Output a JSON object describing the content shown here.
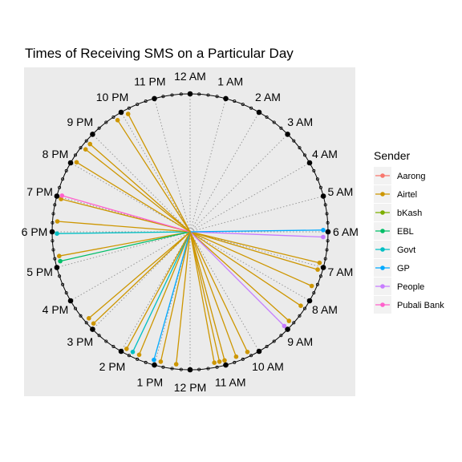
{
  "chart_data": {
    "type": "radial-clock",
    "title": "Times of Receiving SMS on a Particular Day",
    "hour_labels": [
      "12 AM",
      "1 AM",
      "2 AM",
      "3 AM",
      "4 AM",
      "5 AM",
      "6 AM",
      "7 AM",
      "8 AM",
      "9 AM",
      "10 AM",
      "11 AM",
      "12 PM",
      "1 PM",
      "2 PM",
      "3 PM",
      "4 PM",
      "5 PM",
      "6 PM",
      "7 PM",
      "8 PM",
      "9 PM",
      "10 PM",
      "11 PM"
    ],
    "legend": {
      "title": "Sender",
      "position": "right",
      "items": [
        {
          "name": "Aarong",
          "color": "#F8766D"
        },
        {
          "name": "Airtel",
          "color": "#CD9600"
        },
        {
          "name": "bKash",
          "color": "#7CAE00"
        },
        {
          "name": "EBL",
          "color": "#00BE67"
        },
        {
          "name": "Govt",
          "color": "#00BFC4"
        },
        {
          "name": "GP",
          "color": "#00A9FF"
        },
        {
          "name": "People",
          "color": "#C77CFF"
        },
        {
          "name": "Pubali Bank",
          "color": "#FF61CC"
        }
      ]
    },
    "messages": [
      {
        "sender": "Airtel",
        "time": 6.9
      },
      {
        "sender": "Airtel",
        "time": 7.1
      },
      {
        "sender": "Airtel",
        "time": 7.6
      },
      {
        "sender": "Airtel",
        "time": 8.25
      },
      {
        "sender": "Airtel",
        "time": 8.8
      },
      {
        "sender": "People",
        "time": 9.0
      },
      {
        "sender": "People",
        "time": 6.15
      },
      {
        "sender": "GP",
        "time": 5.95
      },
      {
        "sender": "Airtel",
        "time": 10.3
      },
      {
        "sender": "Airtel",
        "time": 10.65
      },
      {
        "sender": "Airtel",
        "time": 11.0
      },
      {
        "sender": "Airtel",
        "time": 11.15
      },
      {
        "sender": "Airtel",
        "time": 11.3
      },
      {
        "sender": "Airtel",
        "time": 12.4
      },
      {
        "sender": "Airtel",
        "time": 12.85
      },
      {
        "sender": "GP",
        "time": 13.05
      },
      {
        "sender": "Airtel",
        "time": 13.5
      },
      {
        "sender": "Govt",
        "time": 13.7
      },
      {
        "sender": "Airtel",
        "time": 13.9
      },
      {
        "sender": "Airtel",
        "time": 15.1
      },
      {
        "sender": "Airtel",
        "time": 15.3
      },
      {
        "sender": "Airtel",
        "time": 17.3
      },
      {
        "sender": "EBL",
        "time": 17.15
      },
      {
        "sender": "Govt",
        "time": 17.95
      },
      {
        "sender": "Airtel",
        "time": 18.3
      },
      {
        "sender": "Airtel",
        "time": 18.95
      },
      {
        "sender": "Pubali Bank",
        "time": 19.05
      },
      {
        "sender": "Airtel",
        "time": 20.1
      },
      {
        "sender": "Airtel",
        "time": 20.55
      },
      {
        "sender": "Airtel",
        "time": 20.75
      },
      {
        "sender": "Airtel",
        "time": 21.8
      },
      {
        "sender": "Airtel",
        "time": 22.15
      }
    ],
    "grid": true
  }
}
